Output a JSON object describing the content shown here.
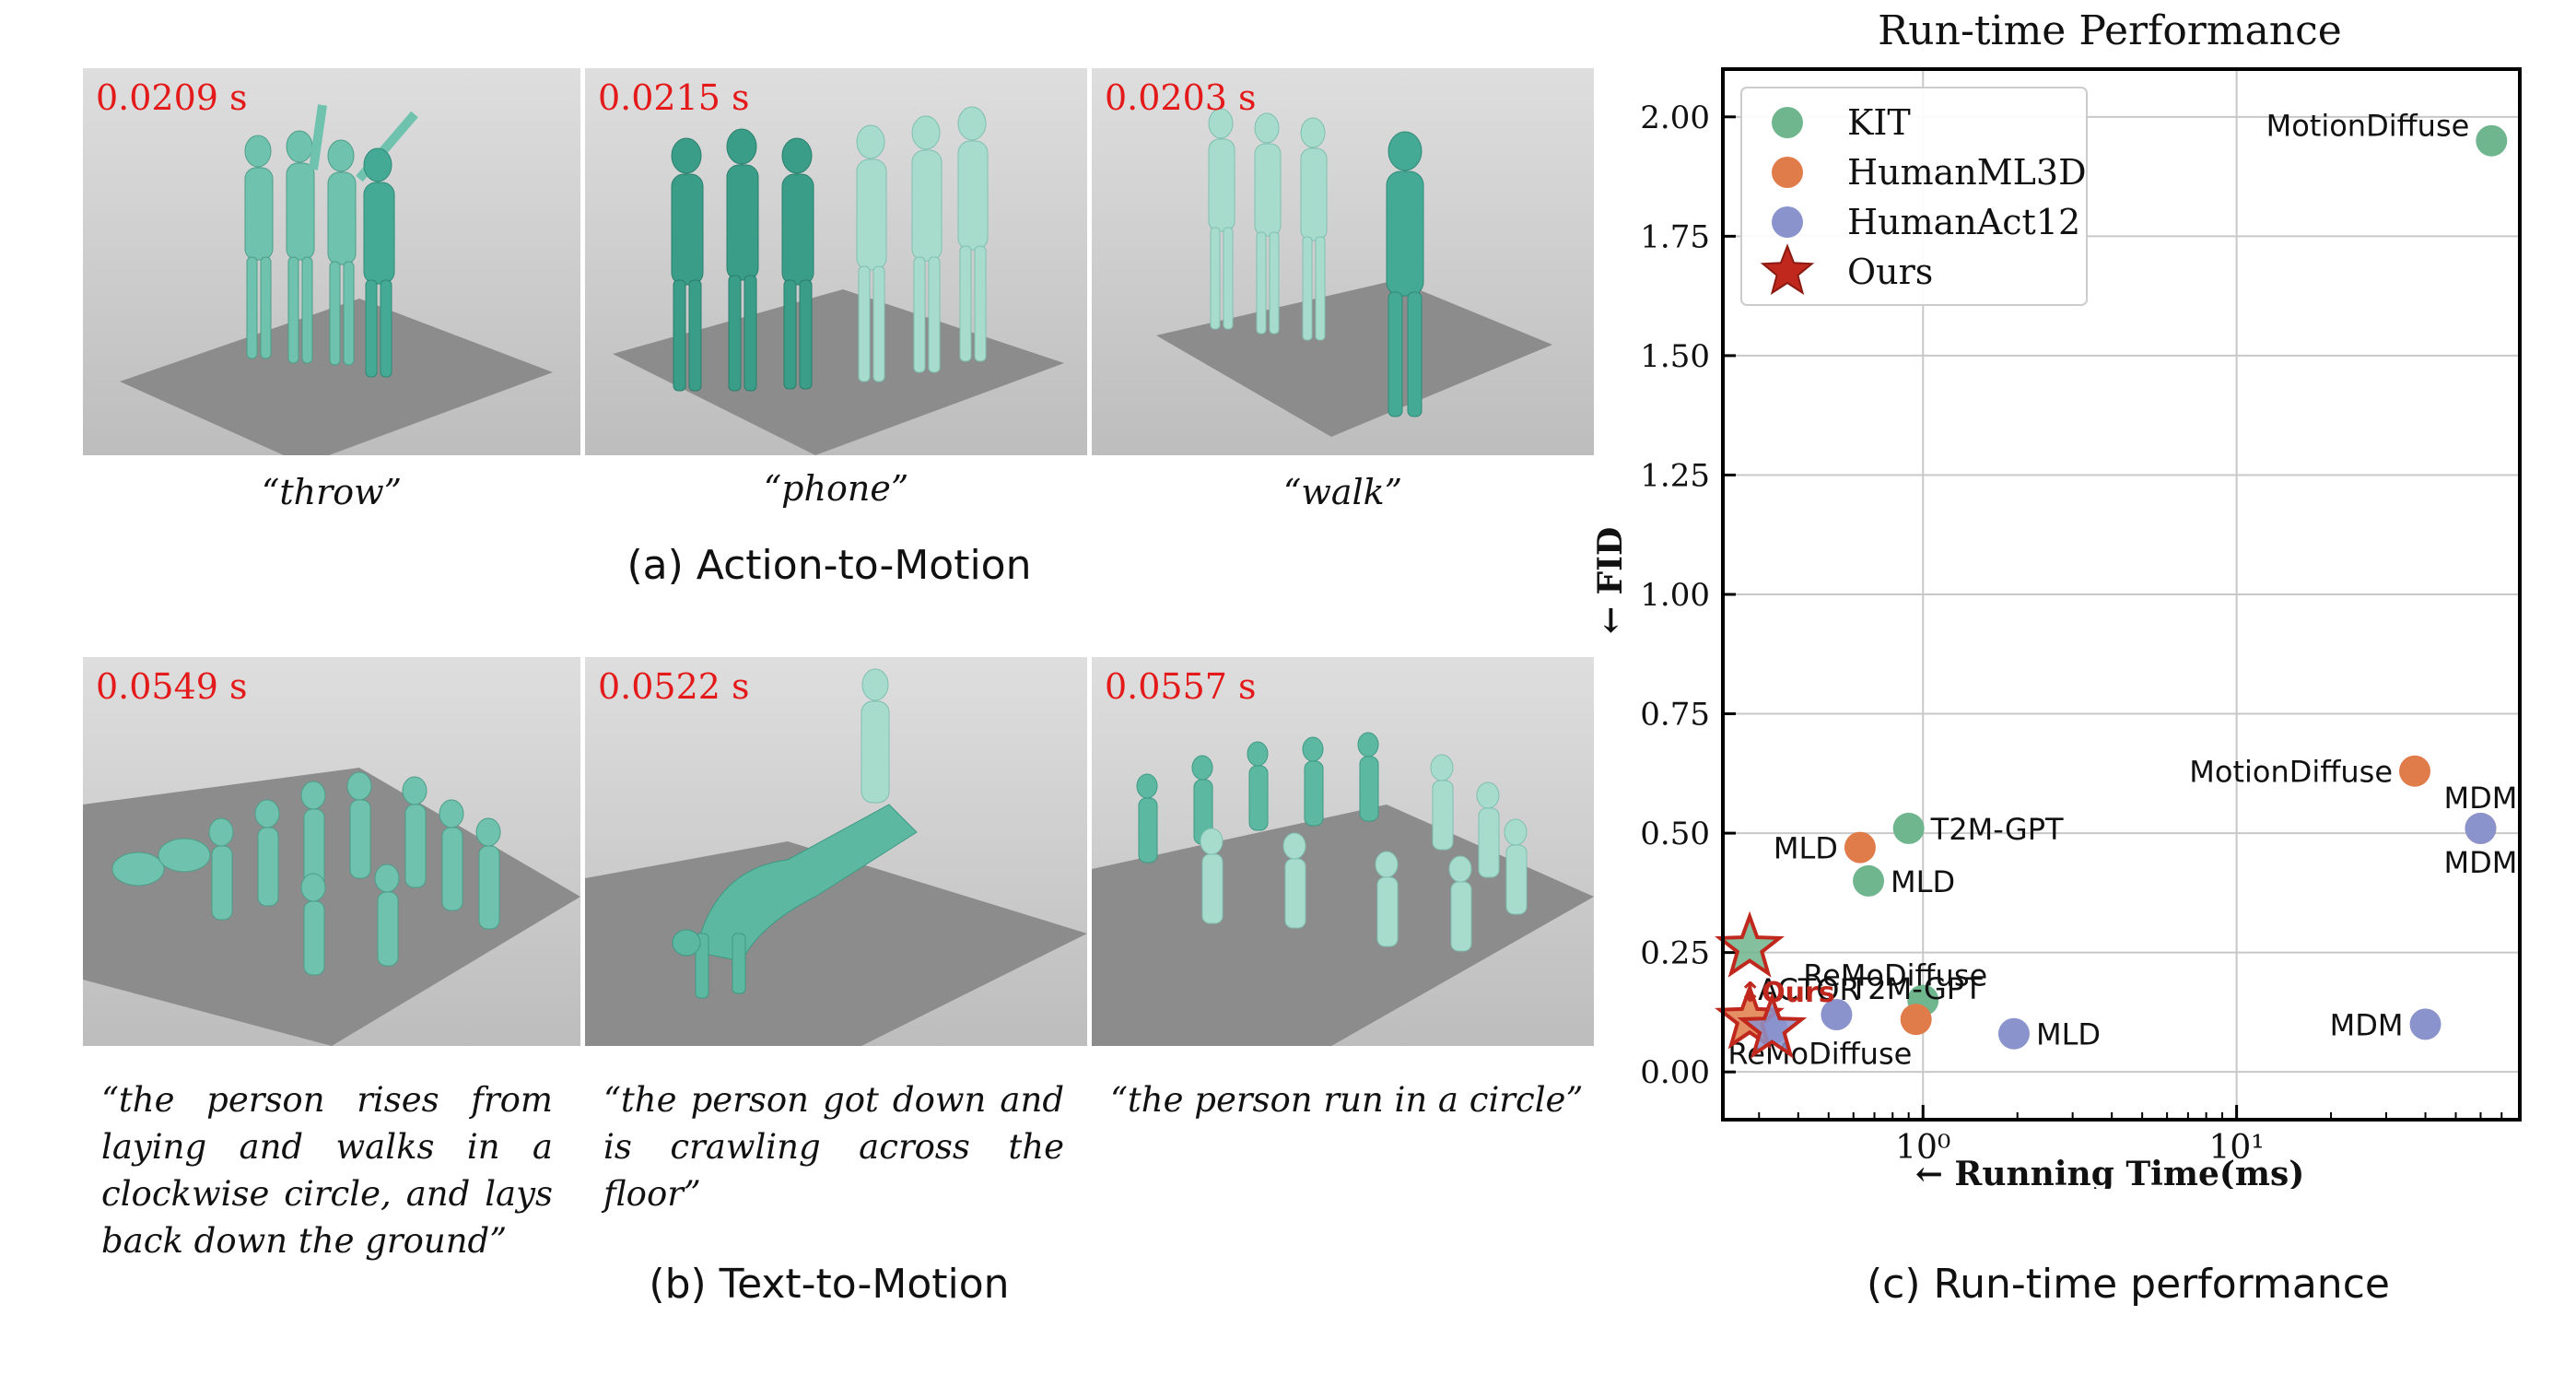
{
  "panel_a": {
    "caption": "(a) Action-to-Motion",
    "items": [
      {
        "time": "0.0209 s",
        "quote": "“throw”"
      },
      {
        "time": "0.0215 s",
        "quote": "“phone”"
      },
      {
        "time": "0.0203 s",
        "quote": "“walk”"
      }
    ]
  },
  "panel_b": {
    "caption": "(b) Text-to-Motion",
    "items": [
      {
        "time": "0.0549 s",
        "quote": "“the person rises from laying and walks in a clockwise circle, and lays back down the ground”"
      },
      {
        "time": "0.0522 s",
        "quote": "“the person got down and is crawling across the floor”"
      },
      {
        "time": "0.0557 s",
        "quote": "“the person run in a circle”"
      }
    ]
  },
  "panel_c": {
    "caption": "(c) Run-time performance"
  },
  "colors": {
    "KIT": "#6fb58d",
    "HumanML3D": "#e07b4a",
    "HumanAct12": "#8a93cc",
    "Ours": "#c0281e",
    "figure_color": "#5fbfa5"
  },
  "chart_data": {
    "type": "scatter",
    "title": "Run-time Performance",
    "xlabel": "← Running Time(ms)",
    "ylabel": "← FID",
    "xscale": "log",
    "xlim": [
      0.23,
      80
    ],
    "ylim": [
      -0.1,
      2.1
    ],
    "xticks": [
      1,
      10
    ],
    "xtick_labels": [
      "10⁰",
      "10¹"
    ],
    "yticks": [
      0,
      0.25,
      0.5,
      0.75,
      1.0,
      1.25,
      1.5,
      1.75,
      2.0
    ],
    "ytick_labels": [
      "0.00",
      "0.25",
      "0.50",
      "0.75",
      "1.00",
      "1.25",
      "1.50",
      "1.75",
      "2.00"
    ],
    "grid": true,
    "legend_position": "top-left",
    "series": [
      {
        "name": "KIT",
        "color_key": "KIT",
        "marker": "circle",
        "points": [
          {
            "x": 65,
            "y": 1.95,
            "label": "MotionDiffuse",
            "label_pos": "left-up"
          },
          {
            "x": 0.9,
            "y": 0.51,
            "label": "T2M-GPT",
            "label_pos": "right"
          },
          {
            "x": 0.67,
            "y": 0.4,
            "label": "MLD",
            "label_pos": "right"
          },
          {
            "x": 1.0,
            "y": 0.15,
            "label": "ReMoDiffuse",
            "label_pos": "right-up"
          }
        ]
      },
      {
        "name": "HumanML3D",
        "color_key": "HumanML3D",
        "marker": "circle",
        "points": [
          {
            "x": 37,
            "y": 0.63,
            "label": "MotionDiffuse",
            "label_pos": "left"
          },
          {
            "x": 60,
            "y": 0.51,
            "label": "MDM",
            "label_pos": "up"
          },
          {
            "x": 0.63,
            "y": 0.47,
            "label": "MLD",
            "label_pos": "left"
          },
          {
            "x": 0.95,
            "y": 0.11,
            "label": "T2M-GPT",
            "label_pos": "up"
          }
        ]
      },
      {
        "name": "HumanAct12",
        "color_key": "HumanAct12",
        "marker": "circle",
        "points": [
          {
            "x": 60,
            "y": 0.51,
            "label": "MDM",
            "label_pos": "down"
          },
          {
            "x": 40,
            "y": 0.1,
            "label": "MDM",
            "label_pos": "left"
          },
          {
            "x": 0.53,
            "y": 0.12,
            "label": "ACTOR",
            "label_pos": "right-up"
          },
          {
            "x": 1.95,
            "y": 0.08,
            "label": "MLD",
            "label_pos": "right"
          },
          {
            "x": 0.33,
            "y": 0.09,
            "label": "ReMoDiffuse",
            "label_pos": "right-down"
          }
        ]
      },
      {
        "name": "Ours",
        "color_key": "Ours",
        "marker": "star",
        "points": [
          {
            "x": 0.28,
            "y": 0.26,
            "fill_key": "KIT"
          },
          {
            "x": 0.28,
            "y": 0.11,
            "fill_key": "HumanML3D"
          },
          {
            "x": 0.33,
            "y": 0.09,
            "fill_key": "HumanAct12"
          }
        ]
      }
    ],
    "annotation": {
      "text": "↕Ours",
      "x": 0.3,
      "y": 0.17
    }
  }
}
